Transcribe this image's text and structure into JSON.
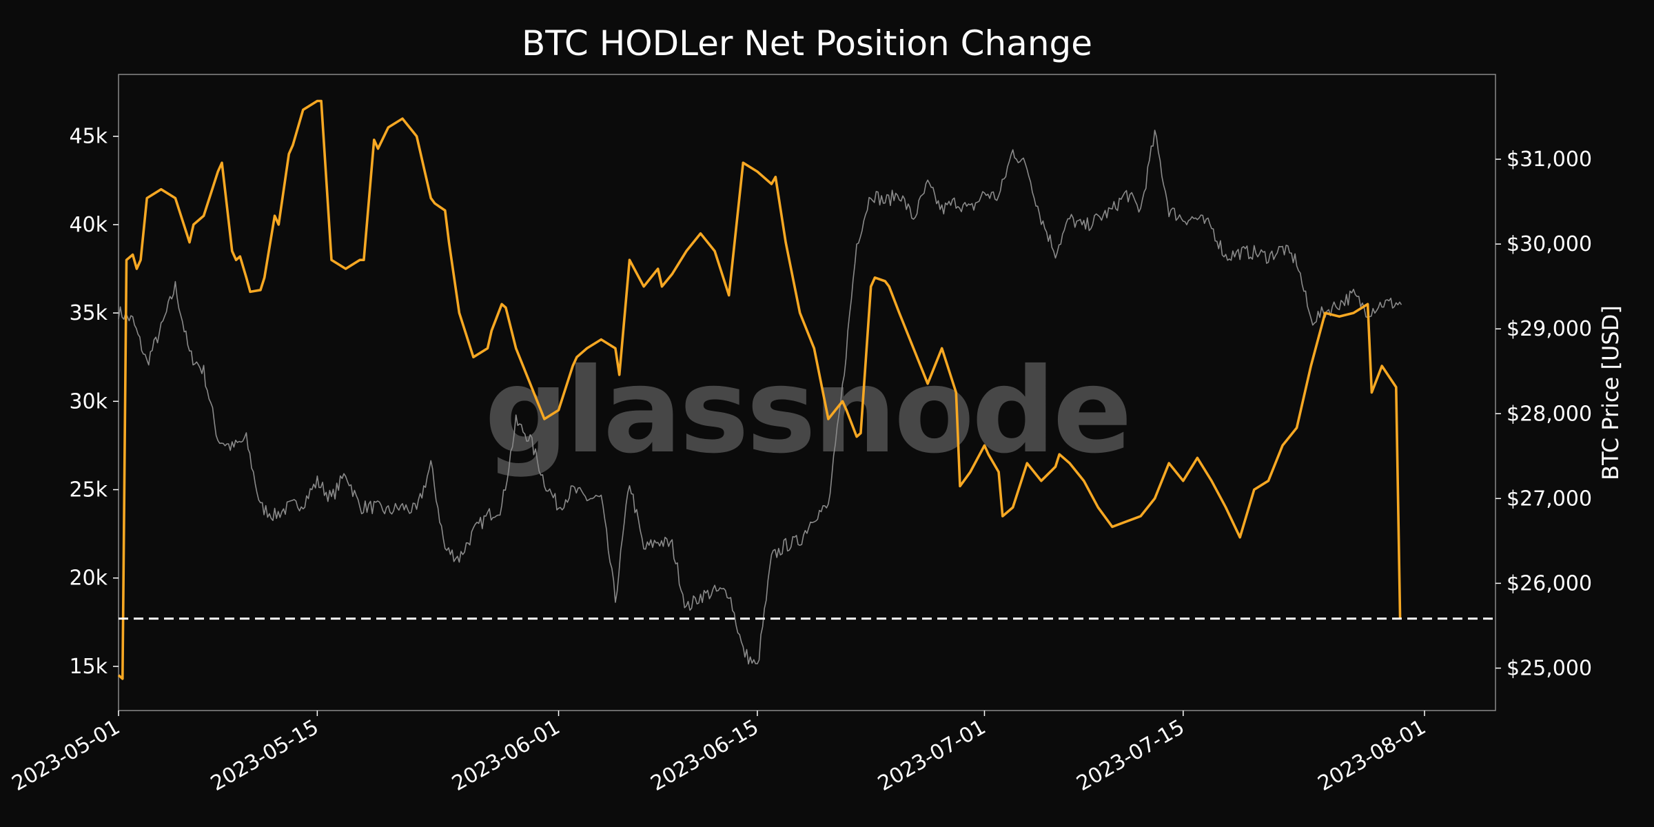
{
  "chart_data": {
    "type": "line",
    "title": "BTC HODLer Net Position Change",
    "watermark": "glassnode",
    "xlabel": "",
    "ylabel_left": "",
    "ylabel_right": "BTC Price [USD]",
    "x_range": [
      "2023-05-01",
      "2023-08-06"
    ],
    "x_ticks": [
      {
        "date": "2023-05-01",
        "label": "2023-05-01"
      },
      {
        "date": "2023-05-15",
        "label": "2023-05-15"
      },
      {
        "date": "2023-06-01",
        "label": "2023-06-01"
      },
      {
        "date": "2023-06-15",
        "label": "2023-06-15"
      },
      {
        "date": "2023-07-01",
        "label": "2023-07-01"
      },
      {
        "date": "2023-07-15",
        "label": "2023-07-15"
      },
      {
        "date": "2023-08-01",
        "label": "2023-08-01"
      }
    ],
    "y_left_range": [
      12500,
      48500
    ],
    "y_left_ticks": [
      {
        "value": 15000,
        "label": "15k"
      },
      {
        "value": 20000,
        "label": "20k"
      },
      {
        "value": 25000,
        "label": "25k"
      },
      {
        "value": 30000,
        "label": "30k"
      },
      {
        "value": 35000,
        "label": "35k"
      },
      {
        "value": 40000,
        "label": "40k"
      },
      {
        "value": 45000,
        "label": "45k"
      }
    ],
    "y_right_range": [
      24500,
      32000
    ],
    "y_right_ticks": [
      {
        "value": 25000,
        "label": "$25,000"
      },
      {
        "value": 26000,
        "label": "$26,000"
      },
      {
        "value": 27000,
        "label": "$27,000"
      },
      {
        "value": 28000,
        "label": "$28,000"
      },
      {
        "value": 29000,
        "label": "$29,000"
      },
      {
        "value": 30000,
        "label": "$30,000"
      },
      {
        "value": 31000,
        "label": "$31,000"
      }
    ],
    "grid": false,
    "reference_line": {
      "axis": "left",
      "value": 17700,
      "style": "dashed",
      "color": "#ffffff"
    },
    "series": [
      {
        "axis": "left",
        "color": "#f7a823",
        "x": [
          "2023-05-01",
          "2023-05-01",
          "2023-05-01",
          "2023-05-02",
          "2023-05-02",
          "2023-05-02",
          "2023-05-03",
          "2023-05-04",
          "2023-05-05",
          "2023-05-06",
          "2023-05-06",
          "2023-05-07",
          "2023-05-08",
          "2023-05-08",
          "2023-05-09",
          "2023-05-09",
          "2023-05-09",
          "2023-05-10",
          "2023-05-10",
          "2023-05-11",
          "2023-05-11",
          "2023-05-12",
          "2023-05-12",
          "2023-05-13",
          "2023-05-13",
          "2023-05-14",
          "2023-05-15",
          "2023-05-15",
          "2023-05-16",
          "2023-05-17",
          "2023-05-18",
          "2023-05-18",
          "2023-05-19",
          "2023-05-19",
          "2023-05-20",
          "2023-05-21",
          "2023-05-22",
          "2023-05-23",
          "2023-05-23",
          "2023-05-24",
          "2023-05-24",
          "2023-05-25",
          "2023-05-26",
          "2023-05-27",
          "2023-05-27",
          "2023-05-28",
          "2023-05-28",
          "2023-05-29",
          "2023-05-30",
          "2023-05-31",
          "2023-06-01",
          "2023-06-02",
          "2023-06-02",
          "2023-06-03",
          "2023-06-04",
          "2023-06-05",
          "2023-06-05",
          "2023-06-06",
          "2023-06-07",
          "2023-06-08",
          "2023-06-08",
          "2023-06-09",
          "2023-06-10",
          "2023-06-11",
          "2023-06-12",
          "2023-06-13",
          "2023-06-14",
          "2023-06-15",
          "2023-06-16",
          "2023-06-16",
          "2023-06-17",
          "2023-06-18",
          "2023-06-19",
          "2023-06-20",
          "2023-06-21",
          "2023-06-21",
          "2023-06-22",
          "2023-06-22",
          "2023-06-23",
          "2023-06-23",
          "2023-06-24",
          "2023-06-24",
          "2023-06-25",
          "2023-06-26",
          "2023-06-27",
          "2023-06-28",
          "2023-06-29",
          "2023-06-29",
          "2023-06-30",
          "2023-07-01",
          "2023-07-01",
          "2023-07-02",
          "2023-07-02",
          "2023-07-03",
          "2023-07-04",
          "2023-07-05",
          "2023-07-06",
          "2023-07-06",
          "2023-07-07",
          "2023-07-08",
          "2023-07-09",
          "2023-07-10",
          "2023-07-11",
          "2023-07-12",
          "2023-07-13",
          "2023-07-14",
          "2023-07-15",
          "2023-07-16",
          "2023-07-17",
          "2023-07-18",
          "2023-07-19",
          "2023-07-20",
          "2023-07-21",
          "2023-07-22",
          "2023-07-23",
          "2023-07-24",
          "2023-07-25",
          "2023-07-26",
          "2023-07-27",
          "2023-07-28",
          "2023-07-28",
          "2023-07-29",
          "2023-07-30",
          "2023-07-30"
        ],
        "y": [
          14500,
          14300,
          38000,
          38300,
          37500,
          38000,
          41500,
          42000,
          41500,
          39000,
          40000,
          40500,
          43000,
          43500,
          38500,
          38000,
          38200,
          37000,
          36200,
          36300,
          37000,
          40500,
          40000,
          44000,
          44500,
          46500,
          47000,
          47000,
          38000,
          37500,
          38000,
          38000,
          44800,
          44300,
          45500,
          46000,
          45000,
          41500,
          41200,
          40800,
          39000,
          35000,
          32500,
          33000,
          34000,
          35500,
          35300,
          33000,
          31000,
          29000,
          29500,
          32000,
          32500,
          33000,
          33500,
          33000,
          31500,
          38000,
          36500,
          37500,
          36500,
          37200,
          38500,
          39500,
          38500,
          36000,
          43500,
          43000,
          42300,
          42700,
          39000,
          35000,
          33000,
          29000,
          30000,
          29500,
          28000,
          28200,
          36500,
          37000,
          36800,
          36500,
          35000,
          33000,
          31000,
          33000,
          30500,
          25200,
          26000,
          27500,
          27000,
          26000,
          23500,
          24000,
          26500,
          25500,
          26300,
          27000,
          26500,
          25500,
          24000,
          22900,
          23200,
          23500,
          24500,
          26500,
          25500,
          26800,
          25500,
          24000,
          22300,
          25000,
          25500,
          27500,
          28500,
          32000,
          35000,
          34800,
          35000,
          35500,
          30500,
          32000,
          30800,
          17700
        ],
        "values": [
          14500,
          14300,
          38000,
          38300,
          37500,
          38000,
          41500,
          42000,
          41500,
          39000,
          40000,
          40500,
          43000,
          43500,
          38500,
          38000,
          38200,
          37000,
          36200,
          36300,
          37000,
          40500,
          40000,
          44000,
          44500,
          46500,
          47000,
          47000,
          38000,
          37500,
          38000,
          38000,
          44800,
          44300,
          45500,
          46000,
          45000,
          41500,
          41200,
          40800,
          39000,
          35000,
          32500,
          33000,
          34000,
          35500,
          35300,
          33000,
          31000,
          29000,
          29500,
          32000,
          32500,
          33000,
          33500,
          33000,
          31500,
          38000,
          36500,
          37500,
          36500,
          37200,
          38500,
          39500,
          38500,
          36000,
          43500,
          43000,
          42300,
          42700,
          39000,
          35000,
          33000,
          29000,
          30000,
          29500,
          28000,
          28200,
          36500,
          37000,
          36800,
          36500,
          35000,
          33000,
          31000,
          33000,
          30500,
          25200,
          26000,
          27500,
          27000,
          26000,
          23500,
          24000,
          26500,
          25500,
          26300,
          27000,
          26500,
          25500,
          24000,
          22900,
          23200,
          23500,
          24500,
          26500,
          25500,
          26800,
          25500,
          24000,
          22300,
          25000,
          25500,
          27500,
          28500,
          32000,
          35000,
          34800,
          35000,
          35500,
          30500,
          32000,
          30800,
          17700
        ]
      },
      {
        "axis": "right",
        "color": "#8a8a8a",
        "x": [
          "2023-05-01",
          "2023-05-02",
          "2023-05-03",
          "2023-05-04",
          "2023-05-05",
          "2023-05-06",
          "2023-05-07",
          "2023-05-08",
          "2023-05-09",
          "2023-05-10",
          "2023-05-11",
          "2023-05-12",
          "2023-05-13",
          "2023-05-14",
          "2023-05-15",
          "2023-05-16",
          "2023-05-17",
          "2023-05-18",
          "2023-05-19",
          "2023-05-20",
          "2023-05-21",
          "2023-05-22",
          "2023-05-23",
          "2023-05-24",
          "2023-05-25",
          "2023-05-26",
          "2023-05-27",
          "2023-05-28",
          "2023-05-29",
          "2023-05-30",
          "2023-05-31",
          "2023-06-01",
          "2023-06-02",
          "2023-06-03",
          "2023-06-04",
          "2023-06-05",
          "2023-06-06",
          "2023-06-07",
          "2023-06-08",
          "2023-06-09",
          "2023-06-10",
          "2023-06-11",
          "2023-06-12",
          "2023-06-13",
          "2023-06-14",
          "2023-06-15",
          "2023-06-16",
          "2023-06-17",
          "2023-06-18",
          "2023-06-19",
          "2023-06-20",
          "2023-06-21",
          "2023-06-22",
          "2023-06-23",
          "2023-06-24",
          "2023-06-25",
          "2023-06-26",
          "2023-06-27",
          "2023-06-28",
          "2023-06-29",
          "2023-06-30",
          "2023-07-01",
          "2023-07-02",
          "2023-07-03",
          "2023-07-04",
          "2023-07-05",
          "2023-07-06",
          "2023-07-07",
          "2023-07-08",
          "2023-07-09",
          "2023-07-10",
          "2023-07-11",
          "2023-07-12",
          "2023-07-13",
          "2023-07-14",
          "2023-07-15",
          "2023-07-16",
          "2023-07-17",
          "2023-07-18",
          "2023-07-19",
          "2023-07-20",
          "2023-07-21",
          "2023-07-22",
          "2023-07-23",
          "2023-07-24",
          "2023-07-25",
          "2023-07-26",
          "2023-07-27",
          "2023-07-28",
          "2023-07-29",
          "2023-07-30"
        ],
        "y": [
          29200,
          29100,
          28600,
          29000,
          29500,
          28700,
          28500,
          27700,
          27600,
          27700,
          26900,
          26800,
          26900,
          26950,
          27200,
          27000,
          27300,
          26900,
          26900,
          26850,
          26900,
          26850,
          27400,
          26400,
          26300,
          26600,
          26800,
          26900,
          27900,
          27700,
          27200,
          26900,
          27100,
          27000,
          27000,
          25800,
          27200,
          26400,
          26500,
          26450,
          25700,
          25850,
          25900,
          25900,
          25200,
          25000,
          26300,
          26450,
          26500,
          26800,
          26900,
          28300,
          30000,
          30600,
          30500,
          30600,
          30300,
          30700,
          30400,
          30500,
          30400,
          30600,
          30550,
          31100,
          30900,
          30300,
          29900,
          30300,
          30200,
          30300,
          30400,
          30600,
          30400,
          31300,
          30400,
          30300,
          30300,
          30200,
          29850,
          29900,
          29900,
          29850,
          29950,
          29800,
          29100,
          29200,
          29300,
          29400,
          29200,
          29300,
          29300
        ],
        "values": [
          29200,
          29100,
          28600,
          29000,
          29500,
          28700,
          28500,
          27700,
          27600,
          27700,
          26900,
          26800,
          26900,
          26950,
          27200,
          27000,
          27300,
          26900,
          26900,
          26850,
          26900,
          26850,
          27400,
          26400,
          26300,
          26600,
          26800,
          26900,
          27900,
          27700,
          27200,
          26900,
          27100,
          27000,
          27000,
          25800,
          27200,
          26400,
          26500,
          26450,
          25700,
          25850,
          25900,
          25900,
          25200,
          25000,
          26300,
          26450,
          26500,
          26800,
          26900,
          28300,
          30000,
          30600,
          30500,
          30600,
          30300,
          30700,
          30400,
          30500,
          30400,
          30600,
          30550,
          31100,
          30900,
          30300,
          29900,
          30300,
          30200,
          30300,
          30400,
          30600,
          30400,
          31300,
          30400,
          30300,
          30300,
          30200,
          29850,
          29900,
          29900,
          29850,
          29950,
          29800,
          29100,
          29200,
          29300,
          29400,
          29200,
          29300,
          29300
        ]
      }
    ]
  }
}
